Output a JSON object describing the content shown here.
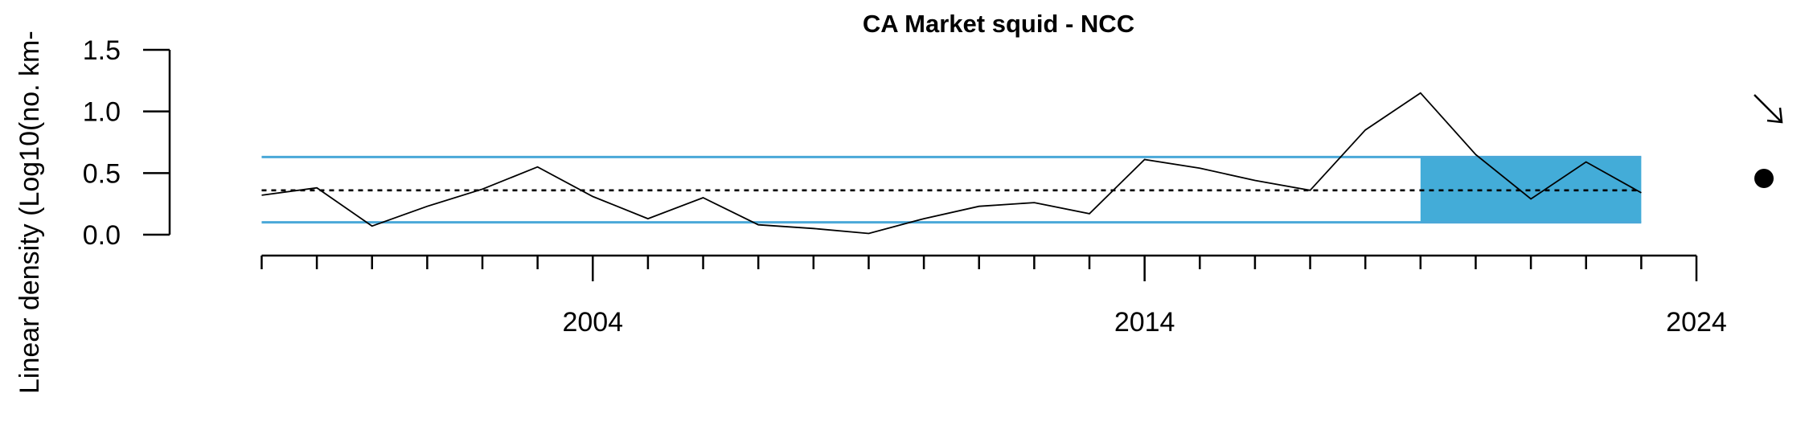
{
  "chart_data": {
    "type": "line",
    "title": "CA Market squid - NCC",
    "xlabel": "",
    "ylabel": "Linear density (Log10(no. km-",
    "xlim": [
      1997.6,
      2024
    ],
    "ylim": [
      0,
      1.5
    ],
    "x_major_ticks": [
      2004,
      2014,
      2024
    ],
    "x_minor_ticks": [
      1998,
      1999,
      2000,
      2001,
      2002,
      2003,
      2004,
      2005,
      2006,
      2007,
      2008,
      2009,
      2010,
      2011,
      2012,
      2013,
      2014,
      2015,
      2016,
      2017,
      2018,
      2019,
      2020,
      2021,
      2022,
      2023,
      2024
    ],
    "y_ticks": [
      {
        "value": 0.0,
        "label": "0.0"
      },
      {
        "value": 0.5,
        "label": "0.5"
      },
      {
        "value": 1.0,
        "label": "1.0"
      },
      {
        "value": 1.5,
        "label": "1.5"
      }
    ],
    "x_tick_labels": [
      "2004",
      "2014",
      "2024"
    ],
    "series": [
      {
        "name": "Linear density",
        "x": [
          1998,
          1999,
          2000,
          2001,
          2002,
          2003,
          2004,
          2005,
          2006,
          2007,
          2008,
          2009,
          2010,
          2011,
          2012,
          2013,
          2014,
          2015,
          2016,
          2017,
          2018,
          2019,
          2020,
          2021,
          2022,
          2023
        ],
        "values": [
          0.32,
          0.38,
          0.07,
          0.23,
          0.37,
          0.55,
          0.31,
          0.13,
          0.3,
          0.08,
          0.05,
          0.01,
          0.13,
          0.23,
          0.26,
          0.17,
          0.61,
          0.54,
          0.44,
          0.36,
          0.85,
          1.15,
          0.65,
          0.29,
          0.59,
          0.34
        ]
      }
    ],
    "mean": 0.36,
    "sd_upper": 0.63,
    "sd_lower": 0.1,
    "recent_window": {
      "x_start": 2019,
      "x_end": 2023
    },
    "trend_indicator": "decreasing",
    "mean_indicator": "within one SD of the long-term mean",
    "colors": {
      "sd_lines": "#4aa8d8",
      "recent_fill": "#43acd8",
      "series": "#000000"
    }
  }
}
